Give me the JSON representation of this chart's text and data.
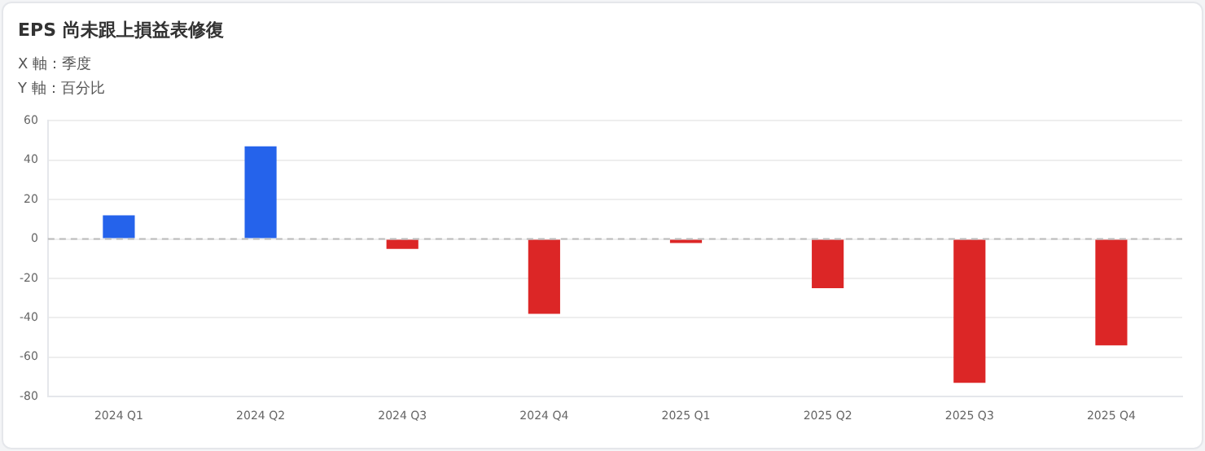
{
  "chart_data": {
    "type": "bar",
    "title": "EPS 尚未跟上損益表修復",
    "xlabel": "X 軸：季度",
    "ylabel": "Y 軸：百分比",
    "categories": [
      "2024 Q1",
      "2024 Q2",
      "2024 Q3",
      "2024 Q4",
      "2025 Q1",
      "2025 Q2",
      "2025 Q3",
      "2025 Q4"
    ],
    "values": [
      12,
      47,
      -5,
      -38,
      -2,
      -25,
      -73,
      -54
    ],
    "colors": [
      "#2563eb",
      "#2563eb",
      "#dc2626",
      "#dc2626",
      "#dc2626",
      "#dc2626",
      "#dc2626",
      "#dc2626"
    ],
    "ylim": [
      -80,
      60
    ],
    "yticks": [
      -80,
      -60,
      -40,
      -20,
      0,
      20,
      40,
      60
    ],
    "grid": "y",
    "ref_lines": [
      {
        "axis": "y",
        "value": 0,
        "color": "#bbbbbb",
        "line_style": "dashed"
      }
    ]
  }
}
